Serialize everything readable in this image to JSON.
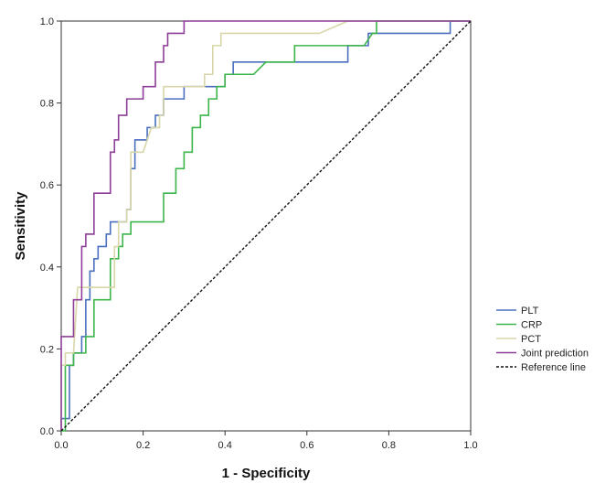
{
  "chart_data": {
    "type": "line",
    "title": "",
    "xlabel": "1 - Specificity",
    "ylabel": "Sensitivity",
    "xlim": [
      0,
      1
    ],
    "ylim": [
      0,
      1
    ],
    "x_ticks": [
      "0.0",
      "0.2",
      "0.4",
      "0.6",
      "0.8",
      "1.0"
    ],
    "y_ticks": [
      "0.0",
      "0.2",
      "0.4",
      "0.6",
      "0.8",
      "1.0"
    ],
    "legend_position": "right",
    "series": [
      {
        "name": "PLT",
        "color": "#4a6fbf",
        "dash": "solid",
        "points": [
          [
            0,
            0
          ],
          [
            0,
            0.03
          ],
          [
            0.02,
            0.03
          ],
          [
            0.02,
            0.16
          ],
          [
            0.03,
            0.16
          ],
          [
            0.03,
            0.19
          ],
          [
            0.05,
            0.19
          ],
          [
            0.05,
            0.23
          ],
          [
            0.06,
            0.23
          ],
          [
            0.06,
            0.32
          ],
          [
            0.07,
            0.32
          ],
          [
            0.07,
            0.39
          ],
          [
            0.08,
            0.39
          ],
          [
            0.08,
            0.42
          ],
          [
            0.09,
            0.42
          ],
          [
            0.09,
            0.45
          ],
          [
            0.11,
            0.45
          ],
          [
            0.11,
            0.48
          ],
          [
            0.12,
            0.48
          ],
          [
            0.12,
            0.51
          ],
          [
            0.16,
            0.51
          ],
          [
            0.16,
            0.54
          ],
          [
            0.17,
            0.54
          ],
          [
            0.17,
            0.64
          ],
          [
            0.18,
            0.64
          ],
          [
            0.18,
            0.71
          ],
          [
            0.21,
            0.71
          ],
          [
            0.21,
            0.74
          ],
          [
            0.23,
            0.74
          ],
          [
            0.23,
            0.77
          ],
          [
            0.25,
            0.77
          ],
          [
            0.25,
            0.81
          ],
          [
            0.3,
            0.81
          ],
          [
            0.3,
            0.84
          ],
          [
            0.37,
            0.84
          ],
          [
            0.37,
            0.84
          ],
          [
            0.4,
            0.84
          ],
          [
            0.4,
            0.87
          ],
          [
            0.42,
            0.87
          ],
          [
            0.42,
            0.9
          ],
          [
            0.53,
            0.9
          ],
          [
            0.53,
            0.9
          ],
          [
            0.7,
            0.9
          ],
          [
            0.7,
            0.94
          ],
          [
            0.75,
            0.94
          ],
          [
            0.75,
            0.97
          ],
          [
            0.95,
            0.97
          ],
          [
            0.95,
            1
          ],
          [
            1,
            1
          ]
        ]
      },
      {
        "name": "CRP",
        "color": "#3cb54a",
        "dash": "solid",
        "points": [
          [
            0,
            0
          ],
          [
            0.01,
            0
          ],
          [
            0.01,
            0.16
          ],
          [
            0.03,
            0.16
          ],
          [
            0.03,
            0.19
          ],
          [
            0.06,
            0.19
          ],
          [
            0.06,
            0.23
          ],
          [
            0.08,
            0.23
          ],
          [
            0.08,
            0.32
          ],
          [
            0.12,
            0.32
          ],
          [
            0.12,
            0.42
          ],
          [
            0.14,
            0.42
          ],
          [
            0.14,
            0.45
          ],
          [
            0.15,
            0.45
          ],
          [
            0.15,
            0.48
          ],
          [
            0.17,
            0.48
          ],
          [
            0.17,
            0.51
          ],
          [
            0.25,
            0.51
          ],
          [
            0.25,
            0.58
          ],
          [
            0.28,
            0.58
          ],
          [
            0.28,
            0.64
          ],
          [
            0.3,
            0.64
          ],
          [
            0.3,
            0.68
          ],
          [
            0.32,
            0.68
          ],
          [
            0.32,
            0.74
          ],
          [
            0.34,
            0.74
          ],
          [
            0.34,
            0.77
          ],
          [
            0.36,
            0.77
          ],
          [
            0.36,
            0.81
          ],
          [
            0.38,
            0.81
          ],
          [
            0.38,
            0.84
          ],
          [
            0.4,
            0.84
          ],
          [
            0.4,
            0.87
          ],
          [
            0.47,
            0.87
          ],
          [
            0.5,
            0.9
          ],
          [
            0.57,
            0.9
          ],
          [
            0.57,
            0.94
          ],
          [
            0.74,
            0.94
          ],
          [
            0.76,
            0.97
          ],
          [
            0.77,
            0.97
          ],
          [
            0.77,
            1
          ],
          [
            1,
            1
          ]
        ]
      },
      {
        "name": "PCT",
        "color": "#d8d6a8",
        "dash": "solid",
        "points": [
          [
            0,
            0
          ],
          [
            0,
            0.16
          ],
          [
            0.01,
            0.16
          ],
          [
            0.01,
            0.19
          ],
          [
            0.03,
            0.19
          ],
          [
            0.04,
            0.35
          ],
          [
            0.13,
            0.35
          ],
          [
            0.13,
            0.45
          ],
          [
            0.14,
            0.45
          ],
          [
            0.14,
            0.51
          ],
          [
            0.16,
            0.51
          ],
          [
            0.16,
            0.54
          ],
          [
            0.17,
            0.54
          ],
          [
            0.17,
            0.68
          ],
          [
            0.2,
            0.68
          ],
          [
            0.22,
            0.74
          ],
          [
            0.24,
            0.74
          ],
          [
            0.24,
            0.77
          ],
          [
            0.25,
            0.77
          ],
          [
            0.25,
            0.84
          ],
          [
            0.3,
            0.84
          ],
          [
            0.35,
            0.84
          ],
          [
            0.35,
            0.87
          ],
          [
            0.37,
            0.87
          ],
          [
            0.37,
            0.94
          ],
          [
            0.39,
            0.94
          ],
          [
            0.39,
            0.97
          ],
          [
            0.63,
            0.97
          ],
          [
            0.7,
            1
          ],
          [
            1,
            1
          ]
        ]
      },
      {
        "name": "Joint prediction",
        "color": "#8e3d98",
        "dash": "solid",
        "points": [
          [
            0,
            0
          ],
          [
            0,
            0.23
          ],
          [
            0.03,
            0.23
          ],
          [
            0.03,
            0.32
          ],
          [
            0.05,
            0.32
          ],
          [
            0.05,
            0.45
          ],
          [
            0.06,
            0.45
          ],
          [
            0.06,
            0.48
          ],
          [
            0.08,
            0.48
          ],
          [
            0.08,
            0.58
          ],
          [
            0.12,
            0.58
          ],
          [
            0.12,
            0.68
          ],
          [
            0.13,
            0.68
          ],
          [
            0.13,
            0.71
          ],
          [
            0.14,
            0.71
          ],
          [
            0.14,
            0.77
          ],
          [
            0.16,
            0.77
          ],
          [
            0.16,
            0.81
          ],
          [
            0.2,
            0.81
          ],
          [
            0.2,
            0.84
          ],
          [
            0.23,
            0.84
          ],
          [
            0.23,
            0.9
          ],
          [
            0.25,
            0.9
          ],
          [
            0.25,
            0.94
          ],
          [
            0.26,
            0.94
          ],
          [
            0.26,
            0.97
          ],
          [
            0.3,
            0.97
          ],
          [
            0.3,
            1
          ],
          [
            1,
            1
          ]
        ]
      },
      {
        "name": "Reference line",
        "color": "#111111",
        "dash": "dotted",
        "points": [
          [
            0,
            0
          ],
          [
            1,
            1
          ]
        ]
      }
    ]
  }
}
